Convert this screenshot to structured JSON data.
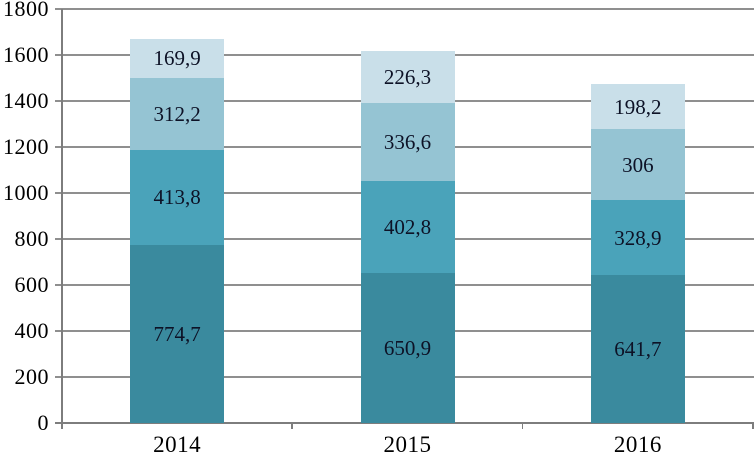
{
  "chart_data": {
    "type": "bar",
    "stacked": true,
    "title": "",
    "xlabel": "",
    "ylabel": "",
    "categories": [
      "2014",
      "2015",
      "2016"
    ],
    "series": [
      {
        "name": "series-1-bottom",
        "color": "#3a8a9e",
        "values": [
          774.7,
          650.9,
          641.7
        ],
        "labels": [
          "774,7",
          "650,9",
          "641,7"
        ]
      },
      {
        "name": "series-2",
        "color": "#4aa3ba",
        "values": [
          413.8,
          402.8,
          328.9
        ],
        "labels": [
          "413,8",
          "402,8",
          "328,9"
        ]
      },
      {
        "name": "series-3",
        "color": "#95c4d3",
        "values": [
          312.2,
          336.6,
          306.0
        ],
        "labels": [
          "312,2",
          "336,6",
          "306"
        ]
      },
      {
        "name": "series-4-top",
        "color": "#c9dfe9",
        "values": [
          169.9,
          226.3,
          198.2
        ],
        "labels": [
          "169,9",
          "226,3",
          "198,2"
        ]
      }
    ],
    "ylim": [
      0,
      1800
    ],
    "y_ticks": [
      0,
      200,
      400,
      600,
      800,
      1000,
      1200,
      1400,
      1600,
      1800
    ],
    "y_tick_labels": [
      "0",
      "200",
      "400",
      "600",
      "800",
      "1000",
      "1200",
      "1400",
      "1600",
      "1800"
    ],
    "grid": true,
    "legend": false,
    "colors": {
      "gridline": "#8f8f8f",
      "axis": "#7d7d7d",
      "value_label_text": "#0d1226",
      "axis_label_text": "#000000",
      "background": "#ffffff"
    }
  }
}
